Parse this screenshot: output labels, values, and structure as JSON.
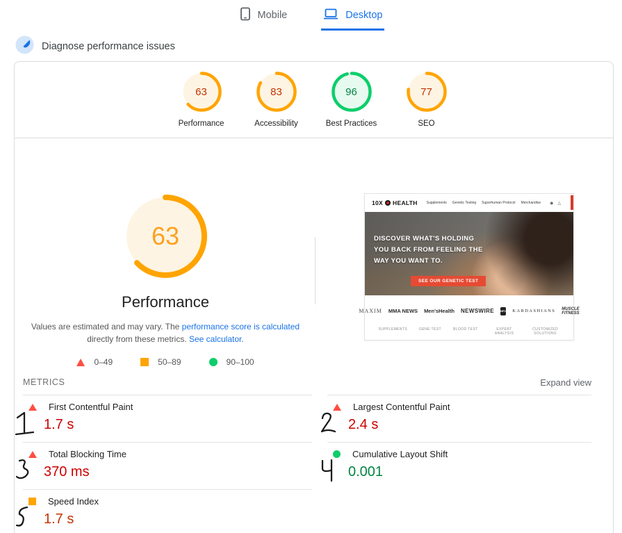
{
  "device_tabs": {
    "mobile": "Mobile",
    "desktop": "Desktop"
  },
  "diagnose_title": "Diagnose performance issues",
  "categories": [
    {
      "label": "Performance",
      "score": "63",
      "status": "average"
    },
    {
      "label": "Accessibility",
      "score": "83",
      "status": "average"
    },
    {
      "label": "Best Practices",
      "score": "96",
      "status": "pass"
    },
    {
      "label": "SEO",
      "score": "77",
      "status": "average"
    }
  ],
  "main_gauge": {
    "score": "63",
    "title": "Performance",
    "status": "average"
  },
  "disclaimer": {
    "text_1": "Values are estimated and may vary. The ",
    "link_1": "performance score is calculated",
    "text_2": " directly from these metrics. ",
    "link_2": "See calculator."
  },
  "legend": [
    {
      "range": "0–49",
      "status": "fail"
    },
    {
      "range": "50–89",
      "status": "average"
    },
    {
      "range": "90–100",
      "status": "pass"
    }
  ],
  "site_preview": {
    "brand_10x": "10X",
    "brand_health": "HEALTH",
    "nav": [
      "Supplements",
      "Genetic Testing",
      "Superhuman Protocol",
      "Merchandise"
    ],
    "hero_line_1": "DISCOVER WHAT'S HOLDING",
    "hero_line_2": "YOU BACK FROM FEELING THE",
    "hero_line_3": "WAY YOU WANT TO.",
    "cta": "SEE OUR GENETIC TEST",
    "press": [
      "MAXIM",
      "MMA NEWS",
      "Men'sHealth",
      "NEWSWIRE",
      "NFC",
      "KARDASHIANS",
      "MUSCLE FITNESS"
    ],
    "footer_links": [
      "SUPPLEMENTS",
      "GENE TEST",
      "BLOOD TEST",
      "EXPERT ANALYSIS",
      "CUSTOMIZED SOLUTIONS"
    ]
  },
  "metrics_section": {
    "heading": "METRICS",
    "expand_label": "Expand view",
    "left": [
      {
        "name": "First Contentful Paint",
        "value": "1.7 s",
        "status": "fail",
        "annotation": "1"
      },
      {
        "name": "Total Blocking Time",
        "value": "370 ms",
        "status": "fail",
        "annotation": "3"
      },
      {
        "name": "Speed Index",
        "value": "1.7 s",
        "status": "average",
        "annotation": "5"
      }
    ],
    "right": [
      {
        "name": "Largest Contentful Paint",
        "value": "2.4 s",
        "status": "fail",
        "annotation": "2"
      },
      {
        "name": "Cumulative Layout Shift",
        "value": "0.001",
        "status": "pass",
        "annotation": "4"
      }
    ]
  },
  "colors": {
    "accent_blue": "#1a73e8",
    "fail_icon": "#FF4E42",
    "average_icon": "#FFA400",
    "pass_icon": "#0CCE6B",
    "fail_text": "#CC0000",
    "average_text": "#C33300",
    "pass_text": "#018642"
  }
}
